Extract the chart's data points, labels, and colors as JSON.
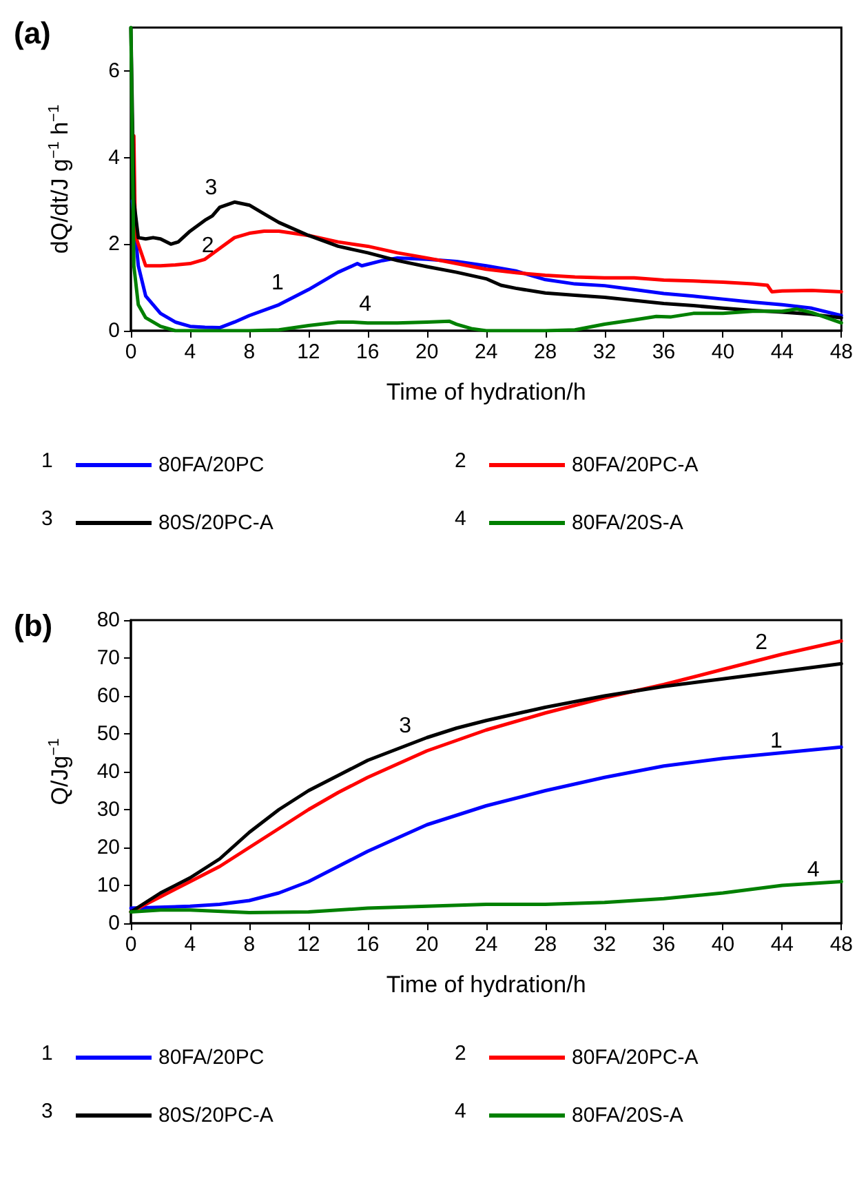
{
  "chart_data": [
    {
      "type": "line",
      "title": "(a)",
      "xlabel": "Time of hydration/h",
      "ylabel": "dQ/dt/J g$^{−1}$ h$^{−1}$",
      "xlim": [
        0,
        48
      ],
      "xticks": [
        0,
        4,
        8,
        12,
        16,
        20,
        24,
        28,
        32,
        36,
        40,
        44,
        48
      ],
      "ylim": [
        0,
        7
      ],
      "yticks": [
        0,
        2,
        4,
        6
      ],
      "grid": false,
      "legend": "bottom",
      "marker": "none",
      "line_style": "solid",
      "annotations": [
        "1",
        "2",
        "3",
        "4"
      ],
      "series": [
        {
          "name": "80FA/20PC",
          "color": "#0000ff",
          "x": [
            0.1,
            0.5,
            1,
            2,
            3,
            4,
            5,
            6,
            7,
            8,
            10,
            12,
            14,
            15.3,
            15.6,
            17,
            18,
            20,
            22,
            24,
            26,
            28,
            30,
            32,
            34,
            36,
            38,
            40,
            42,
            44,
            46,
            48
          ],
          "values": [
            3,
            1.5,
            0.8,
            0.4,
            0.2,
            0.1,
            0.08,
            0.07,
            0.2,
            0.35,
            0.6,
            0.95,
            1.35,
            1.55,
            1.5,
            1.62,
            1.68,
            1.65,
            1.6,
            1.5,
            1.38,
            1.18,
            1.08,
            1.04,
            0.95,
            0.86,
            0.8,
            0.73,
            0.66,
            0.6,
            0.52,
            0.35
          ]
        },
        {
          "name": "80FA/20PC-A",
          "color": "#ff0000",
          "x": [
            0.2,
            0.3,
            1,
            2,
            3,
            4,
            5,
            6,
            7,
            8,
            9,
            10,
            12,
            14,
            16,
            18,
            20,
            22,
            24,
            26,
            28,
            30,
            32,
            34,
            36,
            38,
            40,
            42,
            43,
            43.3,
            44,
            46,
            48
          ],
          "values": [
            4.5,
            2.2,
            1.5,
            1.5,
            1.52,
            1.55,
            1.65,
            1.9,
            2.15,
            2.25,
            2.3,
            2.3,
            2.2,
            2.05,
            1.95,
            1.8,
            1.68,
            1.55,
            1.42,
            1.34,
            1.28,
            1.24,
            1.22,
            1.22,
            1.17,
            1.15,
            1.12,
            1.08,
            1.05,
            0.9,
            0.92,
            0.93,
            0.9
          ]
        },
        {
          "name": "80S/20PC-A",
          "color": "#000000",
          "x": [
            0,
            0.2,
            0.5,
            1,
            1.5,
            2,
            2.7,
            3.2,
            4,
            5,
            5.5,
            6,
            7,
            8,
            9,
            10,
            12,
            14,
            16,
            18,
            20,
            22,
            24,
            25,
            26,
            28,
            30,
            32,
            34,
            36,
            38,
            40,
            42,
            44,
            46,
            48
          ],
          "values": [
            7,
            3,
            2.15,
            2.12,
            2.15,
            2.12,
            2.0,
            2.05,
            2.3,
            2.55,
            2.65,
            2.85,
            2.97,
            2.9,
            2.7,
            2.5,
            2.2,
            1.95,
            1.8,
            1.62,
            1.48,
            1.35,
            1.2,
            1.05,
            0.98,
            0.87,
            0.82,
            0.77,
            0.7,
            0.63,
            0.58,
            0.52,
            0.47,
            0.43,
            0.38,
            0.3
          ]
        },
        {
          "name": "80FA/20S-A",
          "color": "#008000",
          "x": [
            0,
            0.2,
            0.5,
            1,
            2,
            3,
            4,
            8,
            10,
            12,
            14,
            15,
            16,
            18,
            20,
            21.5,
            22,
            23,
            24,
            26,
            28,
            30,
            32,
            34,
            35.5,
            36.5,
            38,
            40,
            42,
            44,
            45,
            46,
            48
          ],
          "values": [
            7,
            1.5,
            0.6,
            0.3,
            0.1,
            0,
            0,
            0,
            0.02,
            0.12,
            0.2,
            0.2,
            0.18,
            0.18,
            0.2,
            0.22,
            0.15,
            0.05,
            0,
            0,
            0,
            0.02,
            0.15,
            0.25,
            0.33,
            0.32,
            0.4,
            0.4,
            0.45,
            0.45,
            0.5,
            0.42,
            0.18
          ]
        }
      ]
    },
    {
      "type": "line",
      "title": "(b)",
      "xlabel": "Time of hydration/h",
      "ylabel": "Q/Jg$^{−1}$",
      "xlim": [
        0,
        48
      ],
      "xticks": [
        0,
        4,
        8,
        12,
        16,
        20,
        24,
        28,
        32,
        36,
        40,
        44,
        48
      ],
      "ylim": [
        0,
        80
      ],
      "yticks": [
        0,
        10,
        20,
        30,
        40,
        50,
        60,
        70,
        80
      ],
      "grid": false,
      "legend": "bottom",
      "marker": "none",
      "line_style": "solid",
      "annotations": [
        "1",
        "2",
        "3",
        "4"
      ],
      "series": [
        {
          "name": "80FA/20PC",
          "color": "#0000ff",
          "x": [
            0,
            4,
            6,
            8,
            10,
            12,
            14,
            16,
            18,
            20,
            24,
            28,
            32,
            36,
            40,
            44,
            48
          ],
          "values": [
            4,
            4.5,
            5,
            6,
            8,
            11,
            15,
            19,
            22.5,
            26,
            31,
            35,
            38.5,
            41.5,
            43.5,
            45,
            46.5
          ]
        },
        {
          "name": "80FA/20PC-A",
          "color": "#ff0000",
          "x": [
            0,
            2,
            4,
            6,
            8,
            10,
            12,
            14,
            16,
            18,
            20,
            24,
            28,
            32,
            36,
            40,
            44,
            48
          ],
          "values": [
            3,
            7,
            11,
            15,
            20,
            25,
            30,
            34.5,
            38.5,
            42,
            45.5,
            51,
            55.5,
            59.5,
            63,
            67,
            71,
            74.5
          ]
        },
        {
          "name": "80S/20PC-A",
          "color": "#000000",
          "x": [
            0,
            2,
            4,
            6,
            8,
            10,
            12,
            14,
            16,
            18,
            20,
            22,
            24,
            28,
            32,
            36,
            40,
            44,
            48
          ],
          "values": [
            3,
            8,
            12,
            17,
            24,
            30,
            35,
            39,
            43,
            46,
            49,
            51.5,
            53.5,
            57,
            60,
            62.5,
            64.5,
            66.5,
            68.5
          ]
        },
        {
          "name": "80FA/20S-A",
          "color": "#008000",
          "x": [
            0,
            2,
            4,
            8,
            12,
            16,
            20,
            24,
            28,
            32,
            36,
            40,
            44,
            48
          ],
          "values": [
            3,
            3.5,
            3.5,
            2.8,
            3,
            4,
            4.5,
            5,
            5,
            5.5,
            6.5,
            8,
            10,
            11
          ]
        }
      ]
    }
  ]
}
